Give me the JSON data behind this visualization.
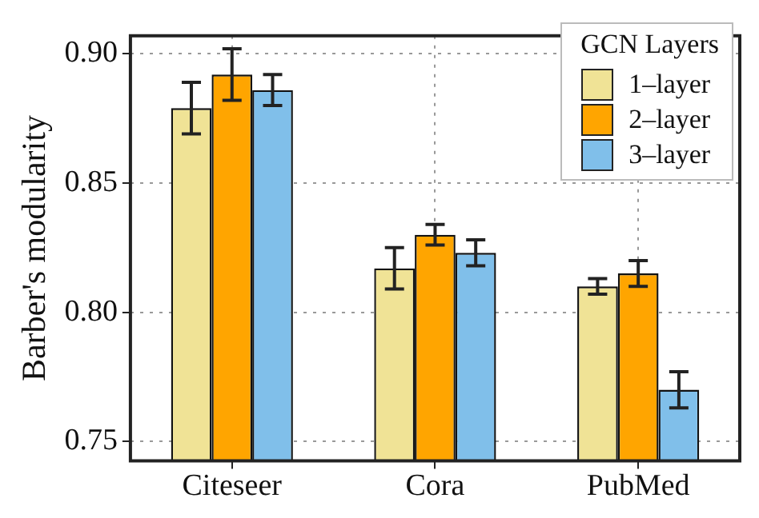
{
  "chart_data": {
    "type": "bar",
    "ylabel": "Barber's modularity",
    "legend_title": "GCN Layers",
    "legend": "top right",
    "grid": true,
    "categories": [
      "Citeseer",
      "Cora",
      "PubMed"
    ],
    "ylim": [
      0.7425,
      0.907
    ],
    "yticks": [
      0.75,
      {
        "value": 0.8,
        "label": "0.80"
      },
      0.85,
      {
        "value": 0.9,
        "label": "0.90"
      }
    ],
    "series": [
      {
        "name": "1–layer",
        "color": "#f0e396",
        "values": [
          0.879,
          0.817,
          0.81
        ],
        "errors": [
          0.01,
          0.008,
          0.003
        ]
      },
      {
        "name": "2–layer",
        "color": "#ffa500",
        "values": [
          0.892,
          0.83,
          0.815
        ],
        "errors": [
          0.01,
          0.004,
          0.005
        ]
      },
      {
        "name": "3–layer",
        "color": "#80bfea",
        "values": [
          0.886,
          0.823,
          0.77
        ],
        "errors": [
          0.006,
          0.005,
          0.007
        ]
      }
    ]
  }
}
